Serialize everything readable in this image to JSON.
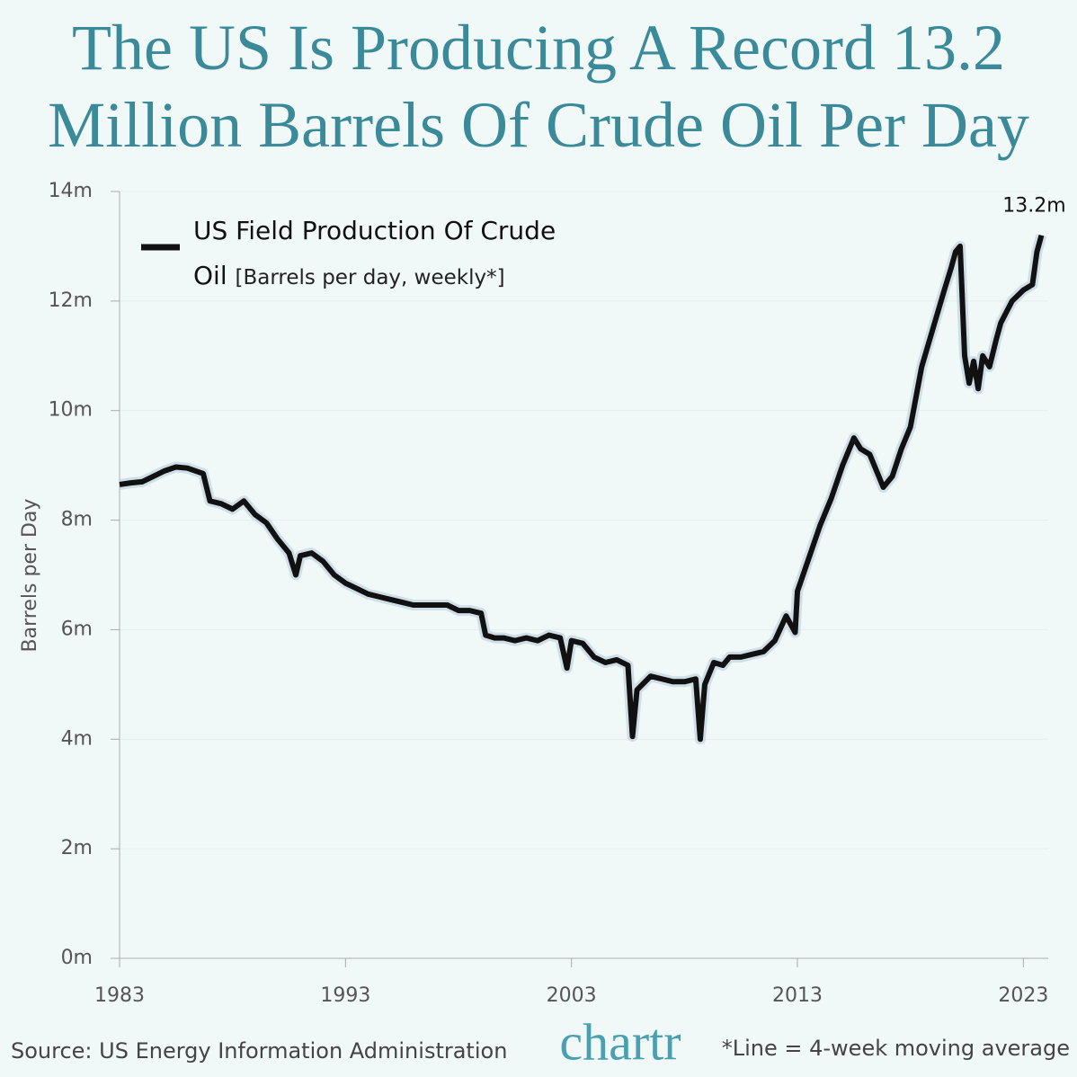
{
  "chart_data": {
    "type": "line",
    "title": "The US Is Producing A Record 13.2 Million Barrels Of Crude Oil Per Day",
    "y_label": "Barrels per Day",
    "legend_note": "[Barrels per day, weekly*]",
    "source": "Source: US Energy Information Administration",
    "logo": "chartr",
    "footnote": "*Line = 4-week moving average",
    "xlim": [
      1983,
      2024.1
    ],
    "xticks": [
      1983,
      1993,
      2003,
      2013,
      2023
    ],
    "ylim": [
      0,
      14
    ],
    "yticks": [
      {
        "value": 0,
        "label": "0m"
      },
      {
        "value": 2,
        "label": "2m"
      },
      {
        "value": 4,
        "label": "4m"
      },
      {
        "value": 6,
        "label": "6m"
      },
      {
        "value": 8,
        "label": "8m"
      },
      {
        "value": 10,
        "label": "10m"
      },
      {
        "value": 12,
        "label": "12m"
      },
      {
        "value": 14,
        "label": "14m"
      }
    ],
    "grid": true,
    "annotations": [
      {
        "text": "13.2m",
        "value": 13.2
      }
    ],
    "x": [
      1983,
      1983.5,
      1984,
      1984.5,
      1985,
      1985.5,
      1986,
      1986.7,
      1987,
      1987.5,
      1988,
      1988.5,
      1989,
      1989.5,
      1990,
      1990.5,
      1990.8,
      1991,
      1991.5,
      1992,
      1992.5,
      1993,
      1993.5,
      1994,
      1994.5,
      1995,
      1995.5,
      1996,
      1996.5,
      1997,
      1997.5,
      1998,
      1998.5,
      1999,
      1999.2,
      1999.6,
      2000,
      2000.5,
      2001,
      2001.5,
      2002,
      2002.5,
      2002.8,
      2003,
      2003.5,
      2004,
      2004.5,
      2005,
      2005.5,
      2005.7,
      2005.9,
      2006.5,
      2007,
      2007.5,
      2008,
      2008.5,
      2008.7,
      2008.9,
      2009.3,
      2009.7,
      2010,
      2010.5,
      2011,
      2011.5,
      2012,
      2012.5,
      2012.9,
      2013,
      2013.5,
      2014,
      2014.5,
      2015,
      2015.5,
      2015.8,
      2016.2,
      2016.8,
      2017.2,
      2017.6,
      2018,
      2018.5,
      2019,
      2019.5,
      2019.8,
      2020,
      2020.2,
      2020.4,
      2020.6,
      2020.8,
      2021,
      2021.2,
      2021.5,
      2021.8,
      2022,
      2022.5,
      2023,
      2023.4,
      2023.6,
      2023.8
    ],
    "series": [
      {
        "name": "US Field Production Of Crude Oil",
        "color": "#111111",
        "values": [
          8.65,
          8.68,
          8.7,
          8.8,
          8.9,
          8.97,
          8.95,
          8.85,
          8.35,
          8.3,
          8.2,
          8.35,
          8.1,
          7.95,
          7.65,
          7.4,
          7.0,
          7.35,
          7.4,
          7.25,
          7.0,
          6.85,
          6.75,
          6.65,
          6.6,
          6.55,
          6.5,
          6.45,
          6.45,
          6.45,
          6.45,
          6.35,
          6.35,
          6.3,
          5.9,
          5.85,
          5.85,
          5.8,
          5.85,
          5.8,
          5.9,
          5.85,
          5.3,
          5.8,
          5.75,
          5.5,
          5.4,
          5.45,
          5.35,
          4.05,
          4.9,
          5.15,
          5.1,
          5.05,
          5.05,
          5.1,
          4.0,
          5.0,
          5.4,
          5.35,
          5.5,
          5.5,
          5.55,
          5.6,
          5.8,
          6.25,
          5.95,
          6.7,
          7.3,
          7.9,
          8.4,
          9.0,
          9.5,
          9.3,
          9.2,
          8.6,
          8.8,
          9.3,
          9.7,
          10.8,
          11.5,
          12.2,
          12.6,
          12.9,
          13.0,
          11.0,
          10.5,
          10.9,
          10.4,
          11.0,
          10.8,
          11.3,
          11.6,
          12.0,
          12.2,
          12.3,
          12.9,
          13.2
        ]
      }
    ]
  }
}
